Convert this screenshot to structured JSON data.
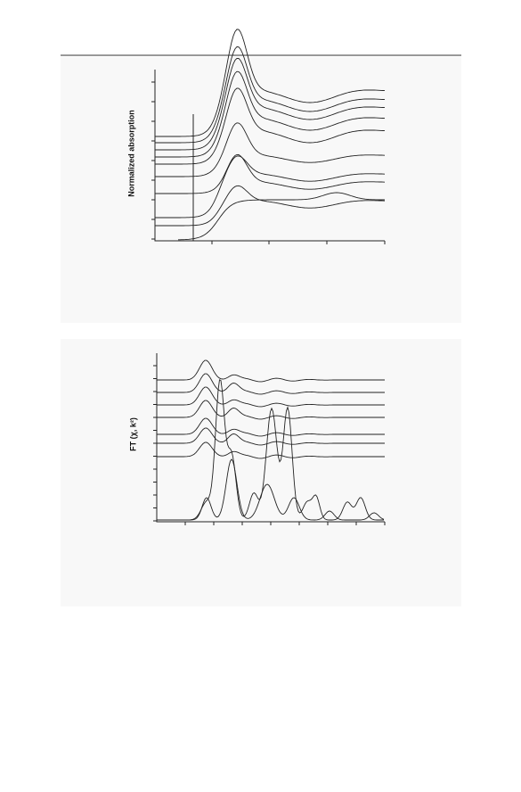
{
  "figure_top": {
    "y_label": "Normalized absorption"
  },
  "figure_bottom": {
    "y_label": "FT (χ, k²)"
  }
}
